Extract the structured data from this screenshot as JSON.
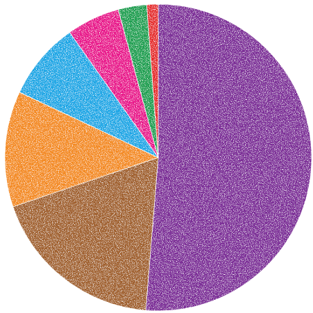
{
  "chart_data": {
    "type": "pie",
    "title": "",
    "start_angle_deg": 0,
    "direction": "clockwise",
    "slices": [
      {
        "value": 51.3,
        "color": "#7b2d97"
      },
      {
        "value": 18.5,
        "color": "#a0612d"
      },
      {
        "value": 12.2,
        "color": "#f38a22"
      },
      {
        "value": 8.2,
        "color": "#1ca6e5"
      },
      {
        "value": 5.6,
        "color": "#e8178a"
      },
      {
        "value": 3.0,
        "color": "#1a9e4f"
      },
      {
        "value": 1.2,
        "color": "#e52b2b"
      }
    ]
  }
}
